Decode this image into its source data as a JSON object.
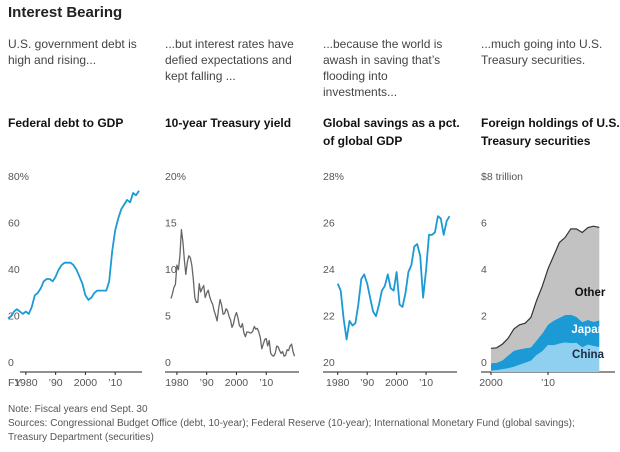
{
  "title": "Interest Bearing",
  "chart_data": [
    {
      "type": "line",
      "annotation": "U.S. government debt is high and rising...",
      "title": "Federal debt to GDP",
      "x": [
        1974,
        1975,
        1976,
        1977,
        1978,
        1979,
        1980,
        1981,
        1982,
        1983,
        1984,
        1985,
        1986,
        1987,
        1988,
        1989,
        1990,
        1991,
        1992,
        1993,
        1994,
        1995,
        1996,
        1997,
        1998,
        1999,
        2000,
        2001,
        2002,
        2003,
        2004,
        2005,
        2006,
        2007,
        2008,
        2009,
        2010,
        2011,
        2012,
        2013,
        2014,
        2015,
        2016,
        2017,
        2018
      ],
      "values": [
        23,
        24,
        26,
        27,
        26,
        25,
        26,
        25,
        28,
        33,
        34,
        36,
        39,
        40,
        40,
        39,
        41,
        44,
        46,
        47,
        47,
        47,
        46,
        44,
        41,
        38,
        33,
        31,
        32,
        34,
        35,
        35,
        35,
        35,
        39,
        52,
        61,
        66,
        70,
        72,
        74,
        73,
        77,
        76,
        78
      ],
      "color": "#1b9ad6",
      "xlim": [
        1974,
        2019
      ],
      "ylim": [
        0,
        80
      ],
      "x_prefix": "FY",
      "xticks": [
        1980,
        {
          "value": 1990,
          "label": "’90"
        },
        2000,
        {
          "value": 2010,
          "label": "’10"
        }
      ],
      "yticks": [
        0,
        20,
        40,
        60,
        {
          "value": 80,
          "label": "80%"
        }
      ]
    },
    {
      "type": "line",
      "annotation": "...but interest rates have defied expectations and kept falling ...",
      "title": "10-year Treasury yield",
      "x": [
        1978,
        1978.5,
        1979,
        1979.5,
        1980,
        1980.5,
        1981,
        1981.5,
        1982,
        1982.5,
        1983,
        1983.5,
        1984,
        1984.5,
        1985,
        1985.5,
        1986,
        1986.5,
        1987,
        1987.5,
        1988,
        1988.5,
        1989,
        1989.5,
        1990,
        1990.5,
        1991,
        1991.5,
        1992,
        1992.5,
        1993,
        1993.5,
        1994,
        1994.5,
        1995,
        1995.5,
        1996,
        1996.5,
        1997,
        1997.5,
        1998,
        1998.5,
        1999,
        1999.5,
        2000,
        2000.5,
        2001,
        2001.5,
        2002,
        2002.5,
        2003,
        2003.5,
        2004,
        2004.5,
        2005,
        2005.5,
        2006,
        2006.5,
        2007,
        2007.5,
        2008,
        2008.5,
        2009,
        2009.5,
        2010,
        2010.5,
        2011,
        2011.5,
        2012,
        2012.5,
        2013,
        2013.5,
        2014,
        2014.5,
        2015,
        2015.5,
        2016,
        2016.5,
        2017,
        2017.5,
        2018,
        2018.5,
        2019,
        2019.5
      ],
      "values": [
        7.9,
        8.4,
        9.1,
        9.4,
        11.5,
        11.0,
        12.5,
        15.3,
        14.0,
        12.0,
        10.5,
        11.8,
        12.5,
        12.3,
        11.5,
        10.0,
        8.0,
        7.5,
        7.5,
        9.5,
        8.6,
        9.0,
        9.3,
        8.0,
        8.5,
        8.8,
        8.1,
        7.6,
        7.3,
        6.6,
        6.1,
        5.5,
        6.8,
        7.8,
        7.2,
        6.2,
        6.3,
        6.8,
        6.6,
        6.0,
        5.6,
        4.8,
        5.2,
        6.0,
        6.4,
        5.8,
        5.0,
        4.8,
        5.2,
        4.2,
        3.8,
        4.3,
        4.3,
        4.2,
        4.2,
        4.4,
        4.9,
        4.6,
        4.7,
        4.3,
        3.7,
        2.5,
        3.0,
        3.5,
        3.6,
        2.8,
        3.4,
        2.0,
        1.8,
        1.7,
        2.0,
        2.8,
        2.7,
        2.3,
        2.0,
        2.2,
        1.7,
        1.8,
        2.4,
        2.3,
        2.8,
        3.0,
        2.2,
        1.7
      ],
      "color": "#666666",
      "xlim": [
        1976,
        2021
      ],
      "ylim": [
        0,
        20
      ],
      "xticks": [
        1980,
        {
          "value": 1990,
          "label": "’90"
        },
        2000,
        {
          "value": 2010,
          "label": "’10"
        }
      ],
      "yticks": [
        0,
        5,
        10,
        15,
        {
          "value": 20,
          "label": "20%"
        }
      ]
    },
    {
      "type": "line",
      "annotation": "...because the world is awash in saving that’s flooding into investments...",
      "title": "Global savings as a pct. of global GDP",
      "x": [
        1980,
        1981,
        1982,
        1983,
        1984,
        1985,
        1986,
        1987,
        1988,
        1989,
        1990,
        1991,
        1992,
        1993,
        1994,
        1995,
        1996,
        1997,
        1998,
        1999,
        2000,
        2001,
        2002,
        2003,
        2004,
        2005,
        2006,
        2007,
        2008,
        2009,
        2010,
        2011,
        2012,
        2013,
        2014,
        2015,
        2016,
        2017,
        2018
      ],
      "values": [
        23.8,
        23.5,
        22.3,
        21.4,
        22.2,
        22.0,
        22.1,
        22.9,
        24.0,
        24.2,
        23.8,
        23.2,
        22.6,
        22.4,
        22.9,
        23.5,
        23.7,
        24.2,
        23.6,
        23.5,
        24.3,
        22.9,
        22.8,
        23.4,
        24.3,
        24.6,
        25.4,
        25.5,
        25.0,
        23.2,
        24.4,
        25.9,
        25.9,
        26.0,
        26.7,
        26.6,
        25.9,
        26.5,
        26.7
      ],
      "color": "#1b9ad6",
      "xlim": [
        1975,
        2020.5
      ],
      "ylim": [
        20,
        28
      ],
      "xticks": [
        1980,
        {
          "value": 1990,
          "label": "’90"
        },
        2000,
        {
          "value": 2010,
          "label": "’10"
        }
      ],
      "yticks": [
        20,
        22,
        24,
        26,
        {
          "value": 28,
          "label": "28%"
        }
      ]
    },
    {
      "type": "stacked_area",
      "annotation": "...much going into U.S. Treasury securities.",
      "title": "Foreign holdings of U.S. Treasury securities",
      "x": [
        2000,
        2001,
        2002,
        2003,
        2004,
        2005,
        2006,
        2007,
        2008,
        2009,
        2010,
        2011,
        2012,
        2013,
        2014,
        2015,
        2016,
        2017,
        2018,
        2019
      ],
      "series": [
        {
          "name": "China",
          "color": "#8fd0f0",
          "values": [
            0.06,
            0.08,
            0.12,
            0.16,
            0.22,
            0.31,
            0.4,
            0.48,
            0.73,
            0.89,
            1.16,
            1.15,
            1.22,
            1.27,
            1.24,
            1.25,
            1.06,
            1.18,
            1.12,
            1.07
          ]
        },
        {
          "name": "Japan",
          "color": "#1b9ad6",
          "values": [
            0.32,
            0.32,
            0.38,
            0.55,
            0.69,
            0.67,
            0.62,
            0.58,
            0.63,
            0.77,
            0.88,
            1.06,
            1.11,
            1.18,
            1.23,
            1.12,
            1.09,
            1.06,
            1.04,
            1.15
          ]
        },
        {
          "name": "Other",
          "color": "#c2c2c2",
          "values": [
            0.64,
            0.64,
            0.7,
            0.74,
            0.94,
            1.05,
            1.08,
            1.29,
            1.72,
            2.03,
            2.4,
            2.79,
            3.24,
            3.34,
            3.69,
            3.78,
            3.85,
            3.97,
            4.11,
            4.0
          ]
        }
      ],
      "xlim": [
        1998.25,
        2021.75
      ],
      "ylim": [
        0,
        8
      ],
      "xticks": [
        2000,
        {
          "value": 2010,
          "label": "’10"
        }
      ],
      "yticks": [
        0,
        2,
        4,
        6,
        {
          "value": 8,
          "label": "$8 trillion"
        }
      ]
    }
  ],
  "notes": [
    "Note: Fiscal years end Sept. 30",
    "Sources: Congressional Budget Office (debt, 10-year); Federal Reserve (10-year); International Monetary Fund (global savings); Treasury Department (securities)"
  ]
}
